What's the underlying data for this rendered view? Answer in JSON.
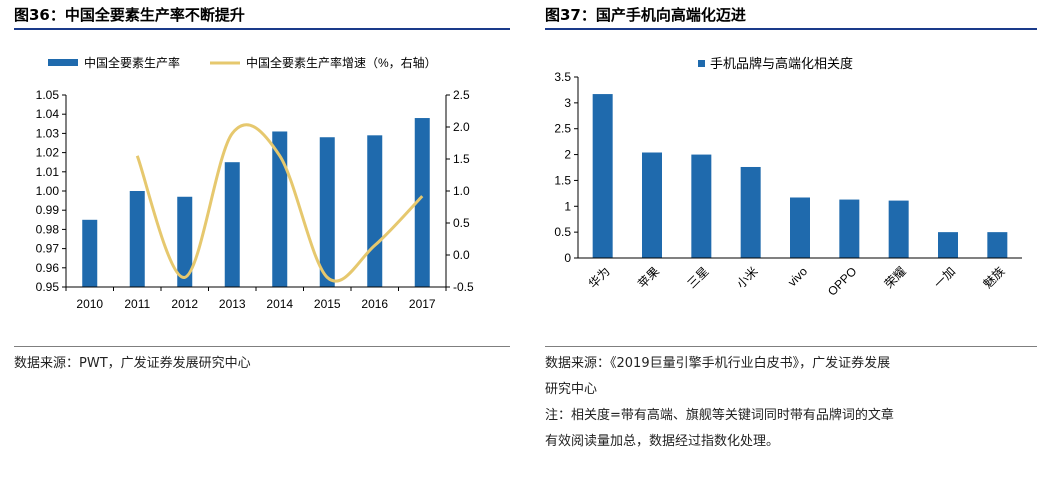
{
  "left": {
    "title": "图36：中国全要素生产率不断提升",
    "source": "数据来源：PWT，广发证券发展研究中心"
  },
  "right": {
    "title": "图37：国产手机向高端化迈进",
    "source_line1": "数据来源：《2019巨量引擎手机行业白皮书》，广发证券发展",
    "source_line2": "研究中心",
    "note_line1": "注：相关度=带有高端、旗舰等关键词同时带有品牌词的文章",
    "note_line2": "有效阅读量加总，数据经过指数化处理。"
  },
  "colors": {
    "bar": "#1f6aad",
    "line": "#e6c86e",
    "rule": "#1a3a8a"
  },
  "chart_data": [
    {
      "type": "bar",
      "categories": [
        "2010",
        "2011",
        "2012",
        "2013",
        "2014",
        "2015",
        "2016",
        "2017"
      ],
      "series": [
        {
          "name": "中国全要素生产率",
          "axis": "left",
          "type": "bar",
          "values": [
            0.985,
            1.0,
            0.997,
            1.015,
            1.031,
            1.028,
            1.029,
            1.038
          ]
        },
        {
          "name": "中国全要素生产率增速（%，右轴）",
          "axis": "right",
          "type": "line",
          "values": [
            null,
            1.55,
            -0.35,
            1.9,
            1.55,
            -0.35,
            0.15,
            0.92
          ]
        }
      ],
      "ylim": [
        0.95,
        1.05
      ],
      "yticks": [
        "0.95",
        "0.96",
        "0.97",
        "0.98",
        "0.99",
        "1.00",
        "1.01",
        "1.02",
        "1.03",
        "1.04",
        "1.05"
      ],
      "y2lim": [
        -0.5,
        2.5
      ],
      "y2ticks": [
        "-0.5",
        "0.0",
        "0.5",
        "1.0",
        "1.5",
        "2.0",
        "2.5"
      ],
      "legend": "top"
    },
    {
      "type": "bar",
      "categories": [
        "华为",
        "苹果",
        "三星",
        "小米",
        "vivo",
        "OPPO",
        "荣耀",
        "一加",
        "魅族"
      ],
      "series": [
        {
          "name": "手机品牌与高端化相关度",
          "values": [
            3.17,
            2.04,
            2.0,
            1.76,
            1.17,
            1.13,
            1.11,
            0.5,
            0.5
          ]
        }
      ],
      "ylim": [
        0,
        3.5
      ],
      "yticks": [
        "0",
        "0.5",
        "1",
        "1.5",
        "2",
        "2.5",
        "3",
        "3.5"
      ],
      "legend": "top"
    }
  ]
}
